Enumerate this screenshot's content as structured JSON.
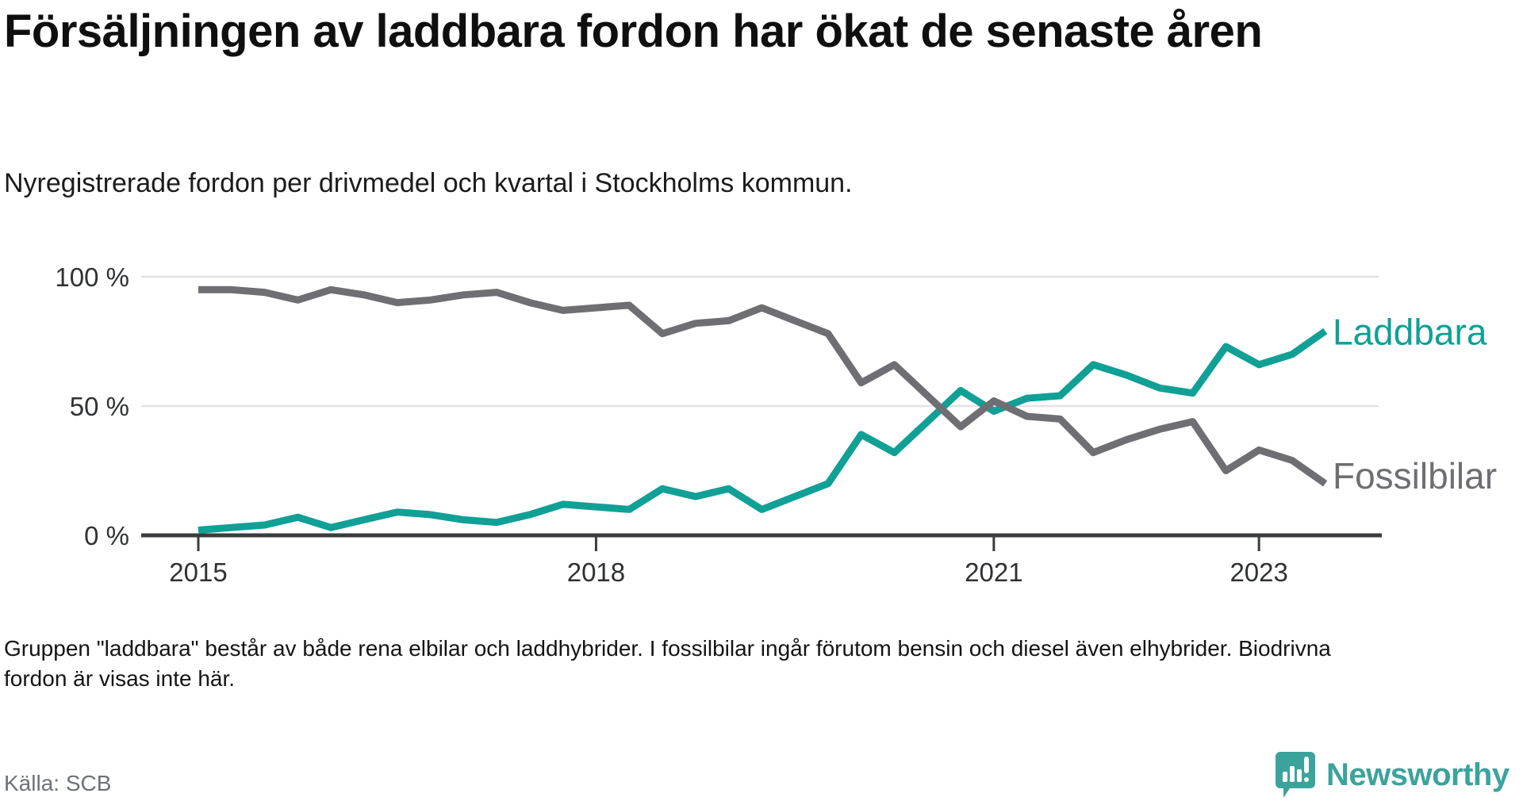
{
  "chart_data": {
    "type": "line",
    "title": "Försäljningen av laddbara fordon har ökat de senaste åren",
    "subtitle": "Nyregistrerade fordon per drivmedel och kvartal i Stockholms kommun.",
    "x": [
      "2015 Q1",
      "2015 Q2",
      "2015 Q3",
      "2015 Q4",
      "2016 Q1",
      "2016 Q2",
      "2016 Q3",
      "2016 Q4",
      "2017 Q1",
      "2017 Q2",
      "2017 Q3",
      "2017 Q4",
      "2018 Q1",
      "2018 Q2",
      "2018 Q3",
      "2018 Q4",
      "2019 Q1",
      "2019 Q2",
      "2019 Q3",
      "2019 Q4",
      "2020 Q1",
      "2020 Q2",
      "2020 Q3",
      "2020 Q4",
      "2021 Q1",
      "2021 Q2",
      "2021 Q3",
      "2021 Q4",
      "2022 Q1",
      "2022 Q2",
      "2022 Q3",
      "2022 Q4",
      "2023 Q1",
      "2023 Q2",
      "2023 Q3"
    ],
    "series": [
      {
        "name": "Laddbara",
        "color": "#10a096",
        "values": [
          2,
          3,
          4,
          7,
          3,
          6,
          9,
          8,
          6,
          5,
          8,
          12,
          11,
          10,
          18,
          15,
          18,
          10,
          15,
          20,
          39,
          32,
          44,
          56,
          48,
          53,
          54,
          66,
          62,
          57,
          55,
          73,
          66,
          70,
          79
        ]
      },
      {
        "name": "Fossilbilar",
        "color": "#6f6f73",
        "values": [
          95,
          95,
          94,
          91,
          95,
          93,
          90,
          91,
          93,
          94,
          90,
          87,
          88,
          89,
          78,
          82,
          83,
          88,
          83,
          78,
          59,
          66,
          54,
          42,
          52,
          46,
          45,
          32,
          37,
          41,
          44,
          25,
          33,
          29,
          20
        ]
      }
    ],
    "xlabel": "",
    "ylabel": "",
    "unit": "percent",
    "ylim": [
      0,
      100
    ],
    "y_tick_values": [
      0,
      50,
      100
    ],
    "y_tick_labels": [
      "0 %",
      "50 %",
      "100 %"
    ],
    "x_tick_labels": [
      "2015",
      "2018",
      "2021",
      "2023"
    ],
    "x_tick_quarter_index": [
      0,
      12,
      24,
      32
    ],
    "grid": "horizontal",
    "legend_position": "end-of-line-labels"
  },
  "footnote": {
    "text": "Gruppen \"laddbara\" består av både rena elbilar och laddhybrider. I fossilbilar ingår förutom bensin och diesel även elhybrider. Biodrivna fordon är visas inte här."
  },
  "source": {
    "text": "Källa: SCB"
  },
  "logo": {
    "text": "Newsworthy",
    "color": "#3ba39c"
  }
}
